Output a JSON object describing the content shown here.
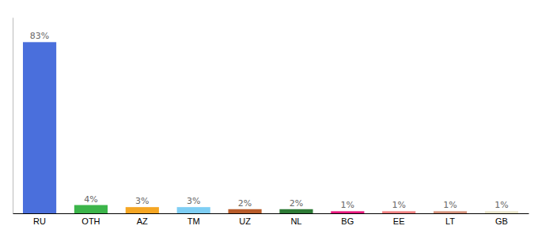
{
  "chart_data": {
    "type": "bar",
    "categories": [
      "RU",
      "OTH",
      "AZ",
      "TM",
      "UZ",
      "NL",
      "BG",
      "EE",
      "LT",
      "GB"
    ],
    "values": [
      83,
      4,
      3,
      3,
      2,
      2,
      1,
      1,
      1,
      1
    ],
    "value_labels": [
      "83%",
      "4%",
      "3%",
      "3%",
      "2%",
      "2%",
      "1%",
      "1%",
      "1%",
      "1%"
    ],
    "colors": [
      "#4a6fdc",
      "#3cb54a",
      "#f5a623",
      "#7ecef4",
      "#b85c2a",
      "#2d7a35",
      "#e8177d",
      "#f08080",
      "#d4917a",
      "#e8e4c8"
    ],
    "ylim": [
      0,
      95
    ],
    "data_labels": true,
    "tick_labels": "x",
    "grid": false
  }
}
